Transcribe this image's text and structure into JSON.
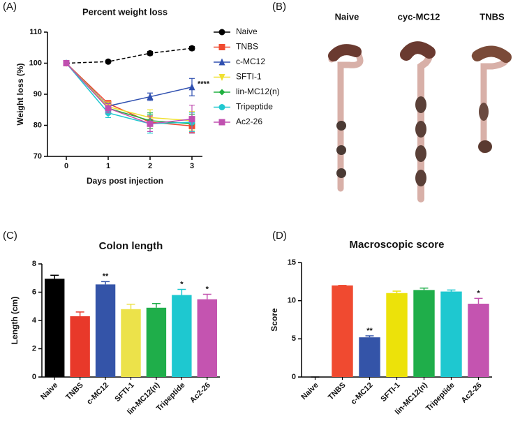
{
  "chart_data": [
    {
      "type": "line",
      "panel": "(A)",
      "title": "Percent weight loss",
      "xlabel": "Days post injection",
      "ylabel": "Weight loss (%)",
      "x": [
        0,
        1,
        2,
        3
      ],
      "xlim": [
        -0.45,
        3.25
      ],
      "xticks": [
        0,
        1,
        2,
        3
      ],
      "ylim": [
        70,
        110
      ],
      "yticks": [
        70,
        80,
        90,
        100,
        110
      ],
      "series": [
        {
          "name": "Naive",
          "color": "#000000",
          "marker": "circle",
          "dashed": true,
          "values": [
            100,
            100.5,
            103.2,
            104.8
          ],
          "errors": [
            0,
            0.4,
            0.6,
            0.6
          ]
        },
        {
          "name": "TNBS",
          "color": "#f04a30",
          "marker": "square",
          "values": [
            100,
            87,
            81,
            79.8
          ],
          "errors": [
            0,
            1,
            2,
            2
          ]
        },
        {
          "name": "c-MC12",
          "color": "#3050b0",
          "marker": "triangle",
          "values": [
            100,
            86.2,
            89.2,
            92.3
          ],
          "errors": [
            0,
            1,
            1.2,
            2.8
          ],
          "annotation": "****"
        },
        {
          "name": "SFTI-1",
          "color": "#f0e030",
          "marker": "triangle-down",
          "values": [
            100,
            86,
            82.5,
            81.5
          ],
          "errors": [
            0,
            1.5,
            2.5,
            3
          ]
        },
        {
          "name": "lin-MC12(n)",
          "color": "#20b040",
          "marker": "diamond",
          "values": [
            100,
            85.5,
            81.5,
            80.5
          ],
          "errors": [
            0,
            1.5,
            2.5,
            3
          ]
        },
        {
          "name": "Tripeptide",
          "color": "#20c8d0",
          "marker": "circle",
          "values": [
            100,
            84,
            80.5,
            81
          ],
          "errors": [
            0,
            1.5,
            3,
            3
          ]
        },
        {
          "name": "Ac2-26",
          "color": "#c050b0",
          "marker": "square",
          "values": [
            100,
            85.5,
            80.5,
            82
          ],
          "errors": [
            0,
            1.5,
            2.5,
            4.5
          ]
        }
      ]
    },
    {
      "type": "bar",
      "panel": "(C)",
      "title": "Colon length",
      "ylabel": "Length (cm)",
      "categories": [
        "Naive",
        "TNBS",
        "c-MC12",
        "SFTI-1",
        "lin-MC12(n)",
        "Tripeptide",
        "Ac2-26"
      ],
      "values": [
        6.95,
        4.3,
        6.55,
        4.8,
        4.9,
        5.8,
        5.5
      ],
      "errors": [
        0.25,
        0.3,
        0.2,
        0.35,
        0.3,
        0.4,
        0.35
      ],
      "annotations": [
        null,
        null,
        "**",
        null,
        null,
        "*",
        "*"
      ],
      "colors": [
        "#000000",
        "#e8392a",
        "#3454a8",
        "#ece24a",
        "#1fae4a",
        "#1ec8d0",
        "#c454b0"
      ],
      "ylim": [
        0,
        8
      ],
      "yticks": [
        0,
        2,
        4,
        6,
        8
      ]
    },
    {
      "type": "bar",
      "panel": "(D)",
      "title": "Macroscopic score",
      "ylabel": "Score",
      "categories": [
        "Naive",
        "TNBS",
        "c-MC12",
        "SFTI-1",
        "lin-MC12(n)",
        "Tripeptide",
        "Ac2-26"
      ],
      "values": [
        0,
        12,
        5.2,
        11,
        11.4,
        11.2,
        9.6
      ],
      "errors": [
        0,
        0,
        0.2,
        0.25,
        0.25,
        0.2,
        0.7
      ],
      "annotations": [
        null,
        null,
        "**",
        null,
        null,
        null,
        "*"
      ],
      "colors": [
        "#000000",
        "#f04a30",
        "#3454a8",
        "#ece20a",
        "#1fae4a",
        "#1ec8d0",
        "#c454b0"
      ],
      "ylim": [
        0,
        15
      ],
      "yticks": [
        0,
        5,
        10,
        15
      ]
    }
  ],
  "image_panel": {
    "panel": "(B)",
    "labels": [
      "Naive",
      "cyc-MC12",
      "TNBS"
    ]
  }
}
